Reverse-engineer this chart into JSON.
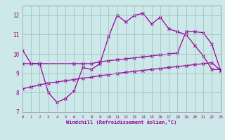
{
  "bg_color": "#cce8e8",
  "line_color": "#990099",
  "grid_color": "#99bbbb",
  "xlabel": "Windchill (Refroidissement éolien,°C)",
  "xlim": [
    0,
    23
  ],
  "ylim": [
    7,
    12.5
  ],
  "xticks": [
    0,
    1,
    2,
    3,
    4,
    5,
    6,
    7,
    8,
    9,
    10,
    11,
    12,
    13,
    14,
    15,
    16,
    17,
    18,
    19,
    20,
    21,
    22,
    23
  ],
  "yticks": [
    7,
    8,
    9,
    10,
    11,
    12
  ],
  "curve1": {
    "x": [
      0,
      1,
      2,
      3,
      4,
      5,
      6,
      7,
      8,
      9,
      10,
      11,
      12,
      13,
      14,
      15,
      16,
      17,
      18,
      19,
      20,
      21,
      22,
      23
    ],
    "y": [
      10.2,
      9.5,
      9.5,
      8.0,
      7.5,
      7.7,
      8.1,
      9.3,
      9.2,
      9.5,
      10.9,
      12.0,
      11.65,
      12.0,
      12.1,
      11.55,
      11.9,
      11.3,
      11.15,
      11.0,
      10.45,
      9.9,
      9.2,
      9.2
    ]
  },
  "curve2": {
    "x": [
      0,
      2,
      6,
      7,
      8,
      9,
      10,
      11,
      12,
      13,
      14,
      15,
      16,
      17,
      18,
      19,
      20,
      21,
      22,
      23
    ],
    "y": [
      9.5,
      9.5,
      9.5,
      9.5,
      9.5,
      9.6,
      9.65,
      9.7,
      9.75,
      9.8,
      9.85,
      9.9,
      9.95,
      10.0,
      10.05,
      11.15,
      11.15,
      11.1,
      10.5,
      9.15
    ]
  },
  "curve3": {
    "x": [
      0,
      1,
      2,
      3,
      4,
      5,
      6,
      7,
      8,
      9,
      10,
      11,
      12,
      13,
      14,
      15,
      16,
      17,
      18,
      19,
      20,
      21,
      22,
      23
    ],
    "y": [
      8.2,
      8.3,
      8.4,
      8.5,
      8.55,
      8.62,
      8.68,
      8.75,
      8.8,
      8.88,
      8.93,
      9.0,
      9.05,
      9.1,
      9.15,
      9.2,
      9.25,
      9.3,
      9.35,
      9.4,
      9.45,
      9.5,
      9.55,
      9.15
    ]
  }
}
